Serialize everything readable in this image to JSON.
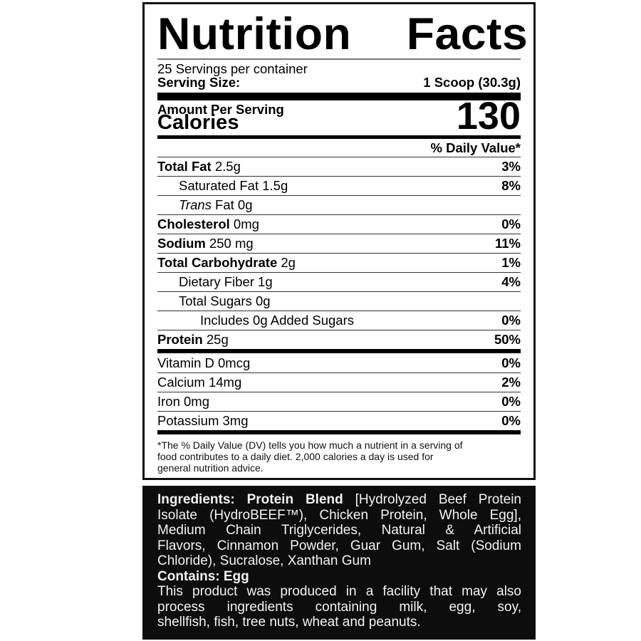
{
  "label": {
    "title_left": "Nutrition",
    "title_right": "Facts",
    "servings_per_container": "25 Servings per container",
    "serving_size_label": "Serving Size:",
    "serving_size_value": "1 Scoop (30.3g)",
    "amount_per_serving": "Amount Per Serving",
    "calories_label": "Calories",
    "calories_value": "130",
    "daily_value_header": "% Daily Value*",
    "nutrients": [
      {
        "name": "Total Fat",
        "amount": " 2.5g",
        "dv": "3%",
        "bold": true,
        "indent": 0
      },
      {
        "name": "",
        "amount": "Saturated Fat 1.5g",
        "dv": "8%",
        "bold": false,
        "indent": 1
      },
      {
        "name": "",
        "italic": "Trans",
        "amount": " Fat 0g",
        "dv": "",
        "bold": false,
        "indent": 1
      },
      {
        "name": "Cholesterol",
        "amount": " 0mg",
        "dv": "0%",
        "bold": true,
        "indent": 0
      },
      {
        "name": "Sodium",
        "amount": " 250 mg",
        "dv": "11%",
        "bold": true,
        "indent": 0
      },
      {
        "name": "Total Carbohydrate",
        "amount": " 2g",
        "dv": "1%",
        "bold": true,
        "indent": 0
      },
      {
        "name": "",
        "amount": "Dietary Fiber 1g",
        "dv": "4%",
        "bold": false,
        "indent": 1
      },
      {
        "name": "",
        "amount": "Total Sugars 0g",
        "dv": "",
        "bold": false,
        "indent": 1
      },
      {
        "name": "",
        "amount": "Includes 0g Added Sugars",
        "dv": "0%",
        "bold": false,
        "indent": 2
      },
      {
        "name": "Protein",
        "amount": " 25g",
        "dv": "50%",
        "bold": true,
        "indent": 0
      }
    ],
    "vitamins": [
      {
        "amount": "Vitamin D 0mcg",
        "dv": "0%"
      },
      {
        "amount": "Calcium 14mg",
        "dv": "2%"
      },
      {
        "amount": "Iron 0mg",
        "dv": "0%"
      },
      {
        "amount": "Potassium 3mg",
        "dv": "0%"
      }
    ],
    "footnote_lines": [
      "*The % Daily Value (DV) tells you how much a nutrient in a serving of",
      "food contributes to a daily diet.  2,000 calories a day is used for",
      "general nutrition advice."
    ]
  },
  "ingredients": {
    "label": "Ingredients: Protein Blend",
    "lines": [
      " [Hydrolyzed Beef Protein",
      "Isolate (HydroBEEF™), Chicken Protein, Whole Egg],",
      "Medium Chain Triglycerides, Natural & Artificial",
      "Flavors, Cinnamon Powder, Guar Gum, Salt (Sodium",
      "Chloride), Sucralose, Xanthan Gum"
    ],
    "contains_label": "Contains:  Egg",
    "facility_lines": [
      "This product was produced in a facility that may also",
      "process ingredients containing milk, egg, soy,",
      "shellfish, fish, tree nuts, wheat and peanuts."
    ]
  }
}
